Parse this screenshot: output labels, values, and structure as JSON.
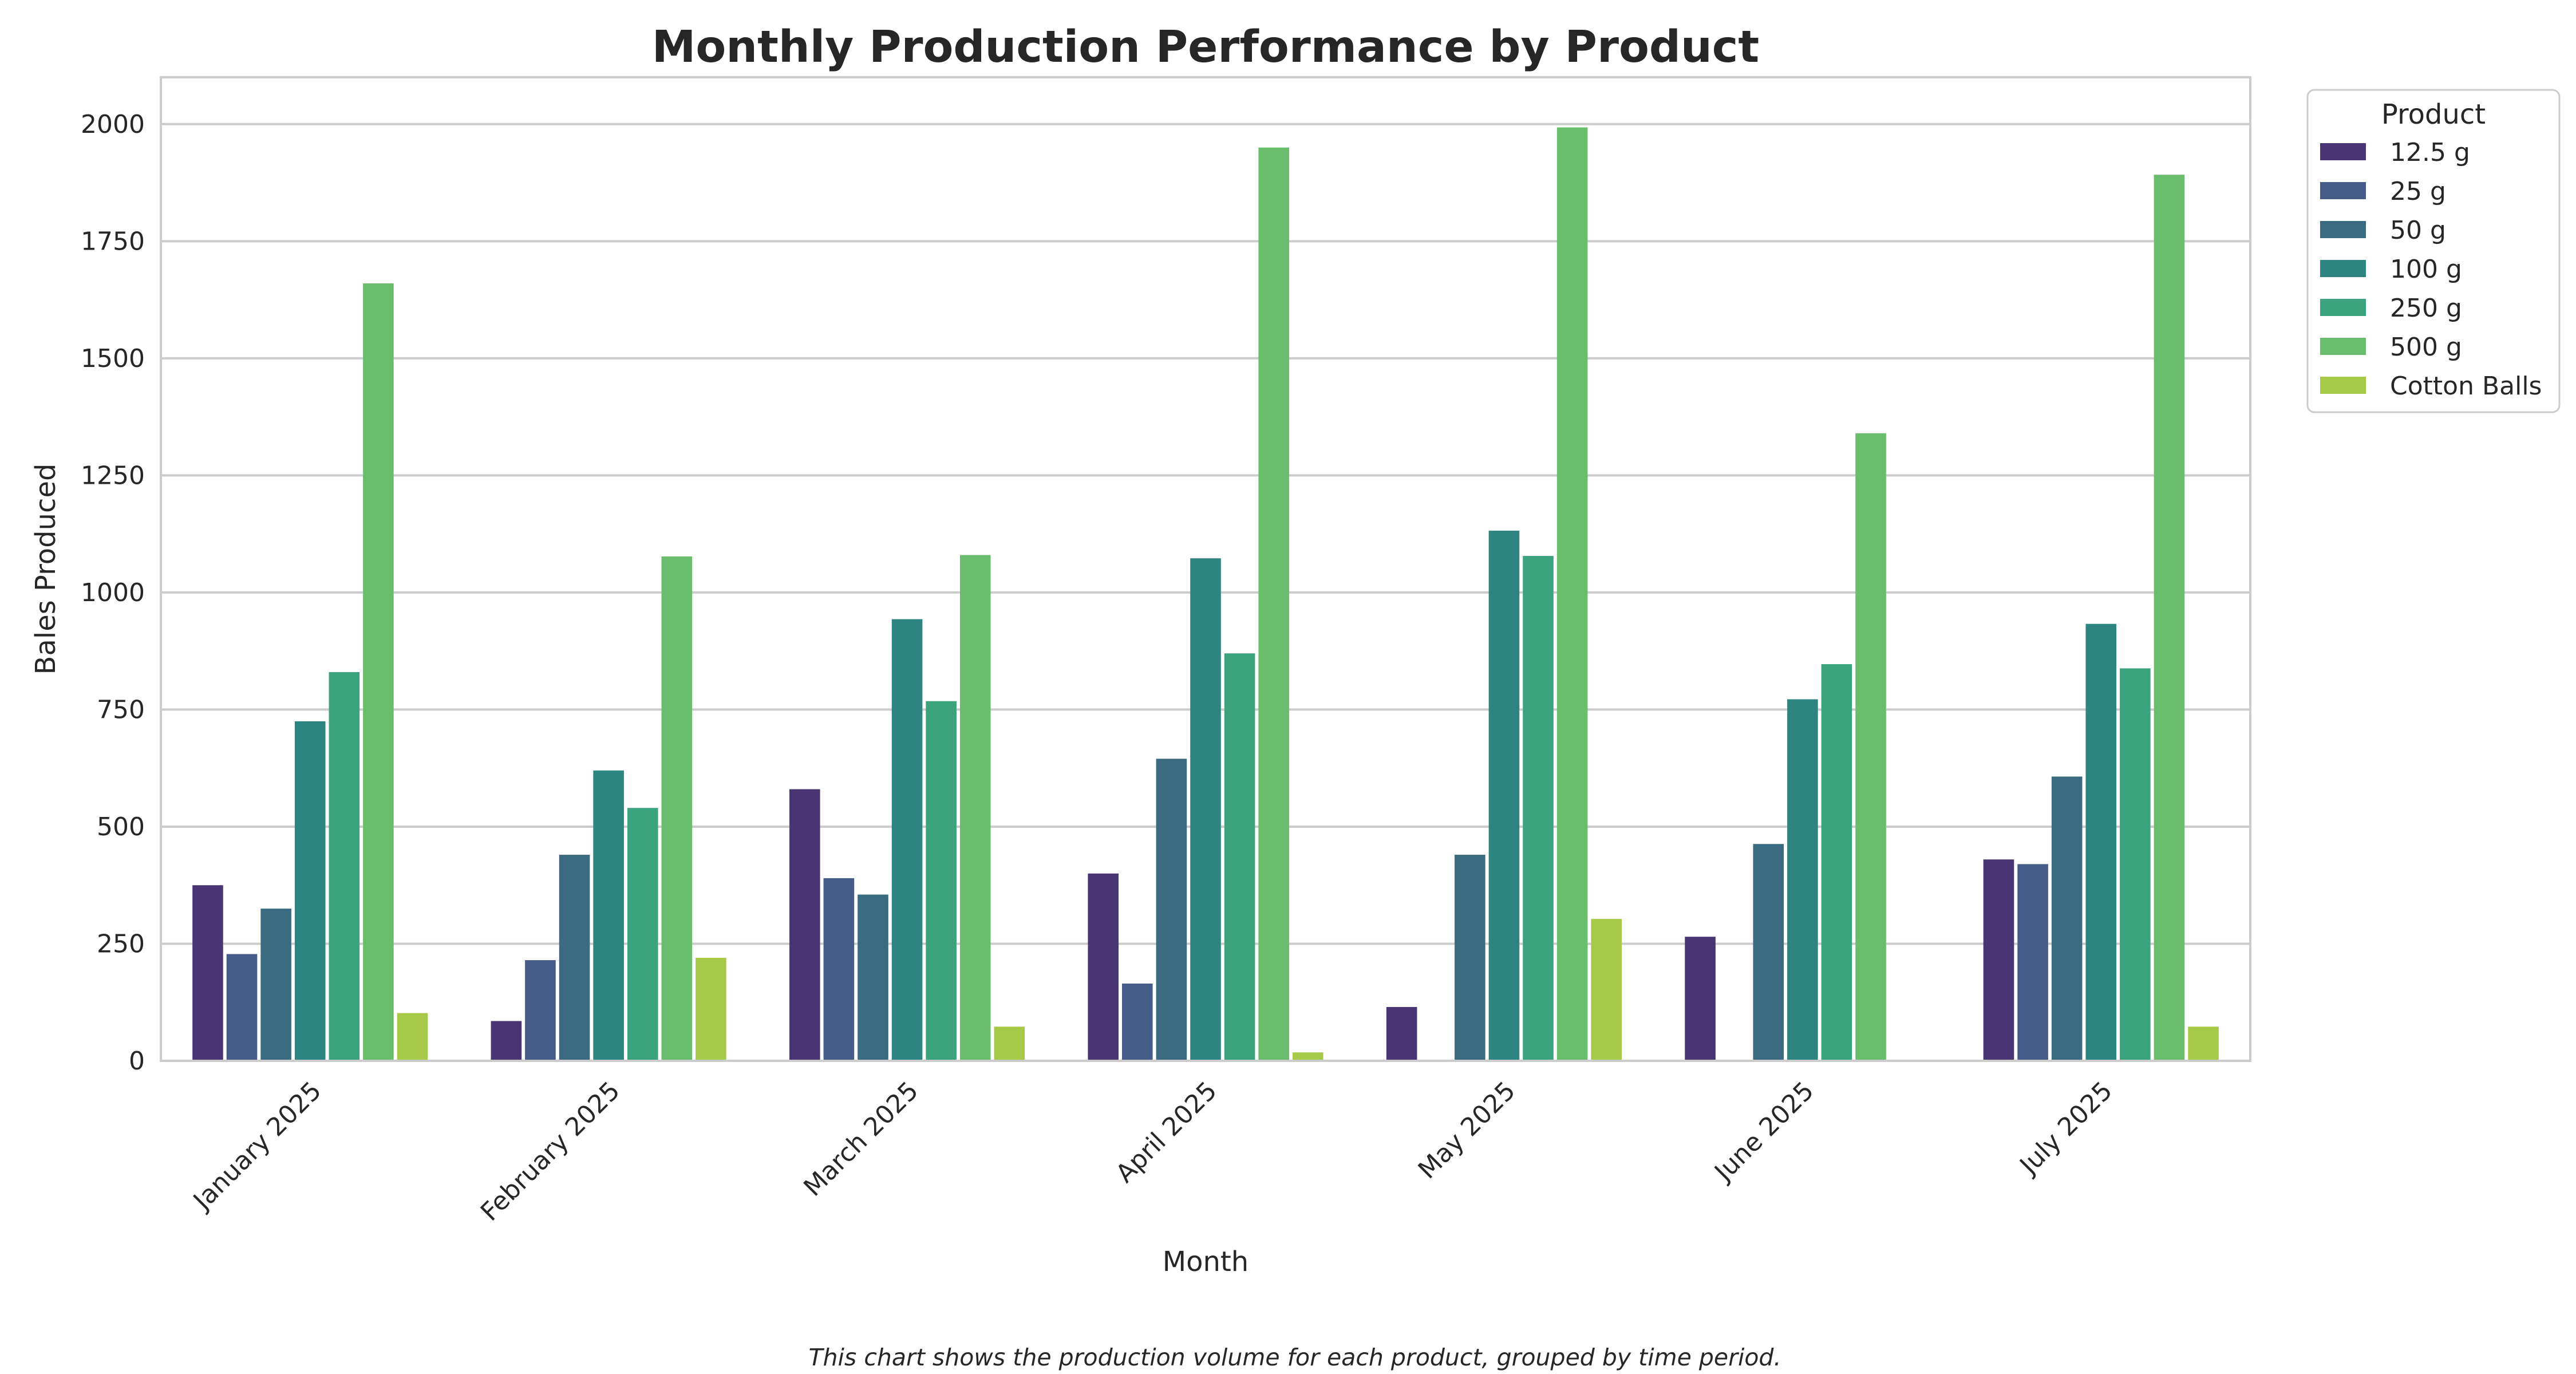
{
  "colors": {
    "background": "#ffffff",
    "grid": "#cccccc",
    "axes_border": "#cccccc",
    "text": "#262626"
  },
  "chart_data": {
    "type": "bar",
    "title": "Monthly Production Performance by Product",
    "xlabel": "Month",
    "ylabel": "Bales Produced",
    "caption": "This chart shows the production volume for each product, grouped by time period.",
    "legend_title": "Product",
    "legend_placement": "outside-top-right",
    "grid": true,
    "ylim": [
      0,
      2100
    ],
    "yticks": [
      0,
      250,
      500,
      750,
      1000,
      1250,
      1500,
      1750,
      2000
    ],
    "categories": [
      "January 2025",
      "February 2025",
      "March 2025",
      "April 2025",
      "May 2025",
      "June 2025",
      "July 2025"
    ],
    "series": [
      {
        "name": "12.5 g",
        "color": "#4a3574",
        "values": [
          375,
          85,
          580,
          400,
          115,
          265,
          430
        ]
      },
      {
        "name": "25 g",
        "color": "#455b88",
        "values": [
          228,
          215,
          390,
          165,
          0,
          0,
          420
        ]
      },
      {
        "name": "50 g",
        "color": "#3a6b80",
        "values": [
          325,
          440,
          355,
          645,
          440,
          463,
          607
        ]
      },
      {
        "name": "100 g",
        "color": "#2d8480",
        "values": [
          725,
          620,
          943,
          1073,
          1132,
          772,
          933
        ]
      },
      {
        "name": "250 g",
        "color": "#3ba37e",
        "values": [
          830,
          540,
          768,
          870,
          1078,
          847,
          838
        ]
      },
      {
        "name": "500 g",
        "color": "#6bbd6e",
        "values": [
          1660,
          1077,
          1080,
          1950,
          1993,
          1340,
          1892
        ]
      },
      {
        "name": "Cotton Balls",
        "color": "#a6c94a",
        "values": [
          102,
          220,
          73,
          18,
          303,
          0,
          73
        ]
      }
    ]
  }
}
